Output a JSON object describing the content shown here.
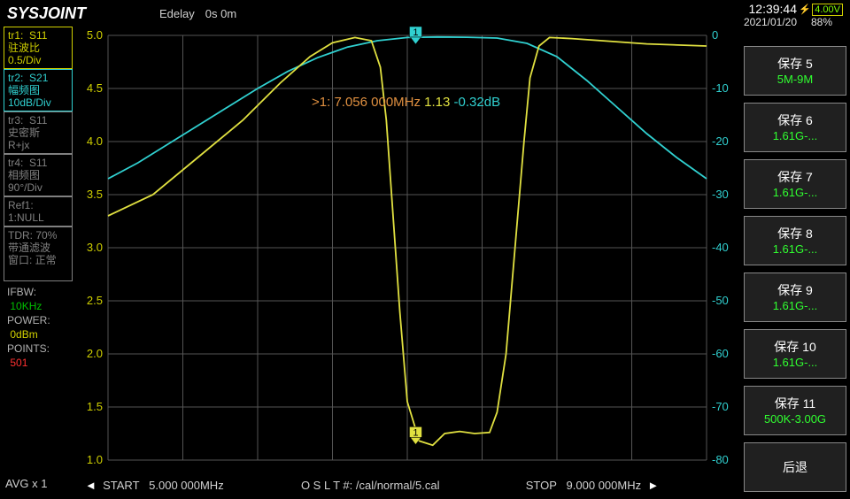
{
  "logo": "SYSJOINT",
  "edelay_label": "Edelay",
  "edelay_value": "0s 0m",
  "clock": "12:39:44",
  "date": "2021/01/20",
  "battery_voltage": "4.00V",
  "battery_pct": "88%",
  "traces": {
    "tr1": {
      "title": "tr1:",
      "param": "S11",
      "l2": "驻波比",
      "l3": "0.5/Div"
    },
    "tr2": {
      "title": "tr2:",
      "param": "S21",
      "l2": "幅频图",
      "l3": "10dB/Div"
    },
    "tr3": {
      "title": "tr3:",
      "param": "S11",
      "l2": "史密斯",
      "l3": "R+jx"
    },
    "tr4": {
      "title": "tr4:",
      "param": "S11",
      "l2": "相频图",
      "l3": "90°/Div"
    },
    "ref1": {
      "title": "Ref1:",
      "l2": "1:NULL"
    },
    "tdr": {
      "title": "TDR:",
      "val": "70%",
      "l2": "带通滤波",
      "l3": "窗口: 正常"
    }
  },
  "meta": {
    "ifbw_lbl": "IFBW:",
    "ifbw": "10KHz",
    "power_lbl": "POWER:",
    "power": "0dBm",
    "points_lbl": "POINTS:",
    "points": "501"
  },
  "avg": "AVG x 1",
  "marker": {
    "idx": ">1:",
    "freq": "7.056 000MHz",
    "swr": "1.13",
    "s21": "-0.32dB"
  },
  "bottom": {
    "start_lbl": "START",
    "start_val": "5.000 000MHz",
    "cal": "O S L T #:  /cal/normal/5.cal",
    "stop_lbl": "STOP",
    "stop_val": "9.000 000MHz"
  },
  "left_axis": {
    "min": 1.0,
    "max": 5.0,
    "step": 0.5,
    "labels": [
      "5.0",
      "4.5",
      "4.0",
      "3.5",
      "3.0",
      "2.5",
      "2.0",
      "1.5",
      "1.0"
    ]
  },
  "right_axis": {
    "min": -80,
    "max": 0,
    "step": 10,
    "labels": [
      "0",
      "-10",
      "-20",
      "-30",
      "-40",
      "-50",
      "-60",
      "-70",
      "-80"
    ]
  },
  "chart": {
    "x_start": 5.0,
    "x_stop": 9.0,
    "s11_swr_points": [
      [
        5.0,
        3.3
      ],
      [
        5.3,
        3.5
      ],
      [
        5.6,
        3.85
      ],
      [
        5.9,
        4.2
      ],
      [
        6.15,
        4.55
      ],
      [
        6.35,
        4.8
      ],
      [
        6.5,
        4.93
      ],
      [
        6.65,
        4.98
      ],
      [
        6.76,
        4.95
      ],
      [
        6.82,
        4.7
      ],
      [
        6.86,
        4.2
      ],
      [
        6.9,
        3.4
      ],
      [
        6.95,
        2.4
      ],
      [
        7.0,
        1.55
      ],
      [
        7.08,
        1.18
      ],
      [
        7.17,
        1.14
      ],
      [
        7.25,
        1.25
      ],
      [
        7.35,
        1.27
      ],
      [
        7.45,
        1.25
      ],
      [
        7.55,
        1.26
      ],
      [
        7.6,
        1.45
      ],
      [
        7.66,
        2.0
      ],
      [
        7.72,
        3.0
      ],
      [
        7.78,
        4.0
      ],
      [
        7.82,
        4.6
      ],
      [
        7.88,
        4.9
      ],
      [
        7.95,
        4.98
      ],
      [
        8.1,
        4.97
      ],
      [
        8.3,
        4.95
      ],
      [
        8.6,
        4.92
      ],
      [
        9.0,
        4.9
      ]
    ],
    "s21_db_points": [
      [
        5.0,
        -27
      ],
      [
        5.2,
        -24
      ],
      [
        5.4,
        -20.5
      ],
      [
        5.6,
        -17
      ],
      [
        5.8,
        -13.5
      ],
      [
        6.0,
        -10
      ],
      [
        6.2,
        -6.8
      ],
      [
        6.4,
        -4.2
      ],
      [
        6.6,
        -2.2
      ],
      [
        6.8,
        -1.0
      ],
      [
        7.0,
        -0.4
      ],
      [
        7.2,
        -0.3
      ],
      [
        7.4,
        -0.35
      ],
      [
        7.6,
        -0.5
      ],
      [
        7.8,
        -1.5
      ],
      [
        8.0,
        -4.0
      ],
      [
        8.2,
        -8.5
      ],
      [
        8.4,
        -13.5
      ],
      [
        8.6,
        -18.5
      ],
      [
        8.8,
        -23
      ],
      [
        9.0,
        -27
      ]
    ],
    "marker_freq": 7.056,
    "colors": {
      "s11": "#e0e040",
      "s21": "#30d0d0",
      "grid": "#555555",
      "bg": "#000000"
    }
  },
  "rightpanel": [
    {
      "title": "保存 5",
      "sub": "5M-9M"
    },
    {
      "title": "保存 6",
      "sub": "1.61G-..."
    },
    {
      "title": "保存 7",
      "sub": "1.61G-..."
    },
    {
      "title": "保存 8",
      "sub": "1.61G-..."
    },
    {
      "title": "保存 9",
      "sub": "1.61G-..."
    },
    {
      "title": "保存 10",
      "sub": "1.61G-..."
    },
    {
      "title": "保存 11",
      "sub": "500K-3.00G"
    },
    {
      "title": "后退",
      "sub": ""
    }
  ]
}
